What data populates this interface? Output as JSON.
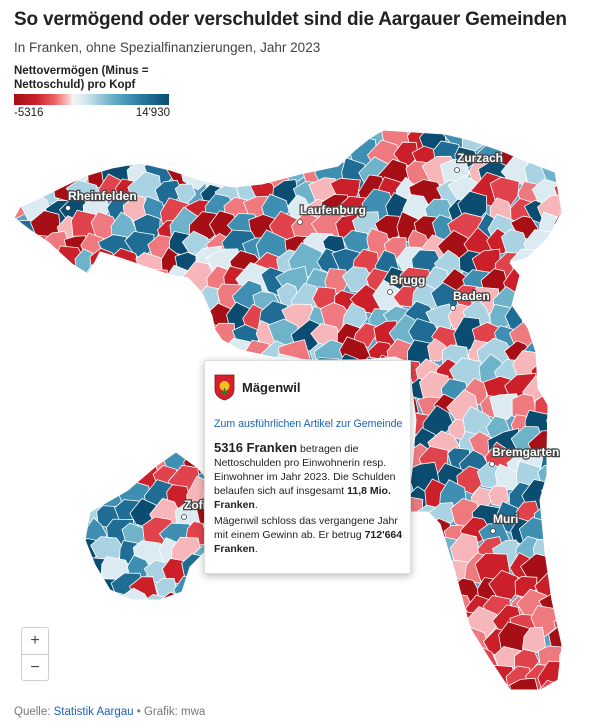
{
  "title": "So vermögend oder verschuldet sind die Aargauer Gemeinden",
  "subtitle": "In Franken, ohne Spezialfinanzierungen, Jahr 2023",
  "legend": {
    "title": "Nettovermögen (Minus = Nettoschuld) pro Kopf",
    "min_label": "-5316",
    "max_label": "14'930",
    "colors": [
      "#a50f15",
      "#ee5f62",
      "#f4f4f4",
      "#6fb3cb",
      "#0b4d70"
    ]
  },
  "places": [
    "Rheinfelden",
    "Laufenburg",
    "Zurzach",
    "Brugg",
    "Baden",
    "Bremgarten",
    "Zofingen",
    "Muri"
  ],
  "popup": {
    "name": "Mägenwil",
    "crest_icon": "crest-icon",
    "link": "Zum ausführlichen Artikel zur Gemeinde",
    "amount": "5316 Franken",
    "text1a": "betragen die Nettoschulden pro Einwohnerin resp. Einwohner im Jahr 2023. Die Schulden belaufen sich auf insgesamt",
    "debt_total": "11,8 Mio. Franken",
    "text1b": ".",
    "text2a": "Mägenwil schloss das vergangene Jahr mit einem Gewinn ab. Er betrug",
    "profit": "712'664 Franken",
    "text2b": "."
  },
  "zoom": {
    "plus": "+",
    "minus": "−"
  },
  "source": {
    "prefix": "Quelle:",
    "link": "Statistik Aargau",
    "suffix": "• Grafik: mwa"
  }
}
